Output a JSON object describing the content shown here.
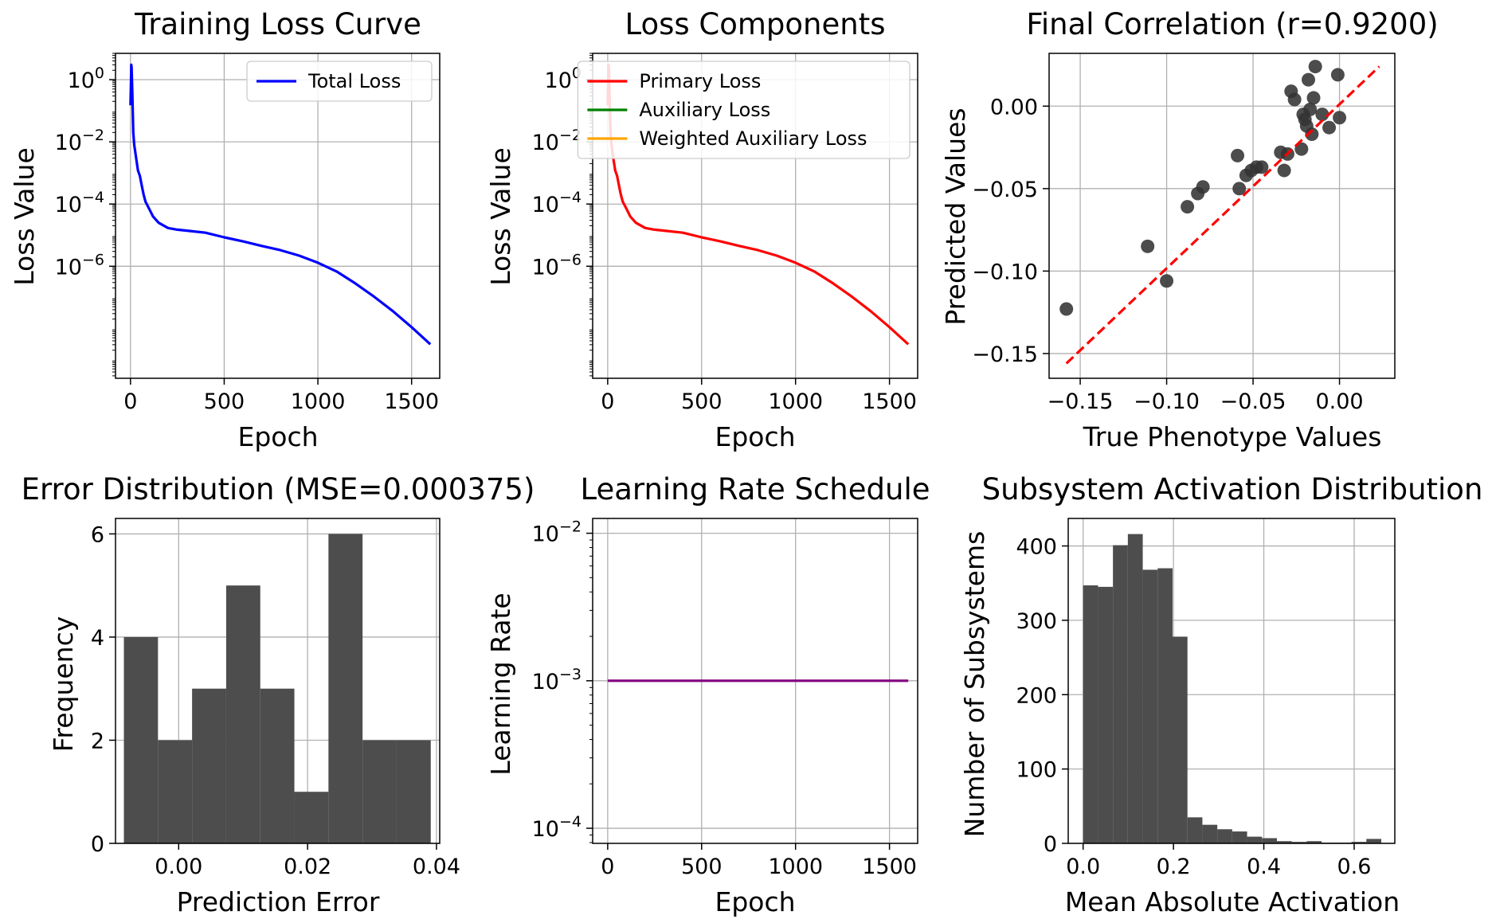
{
  "colors": {
    "total_loss": "#0000ff",
    "primary_loss": "#ff0000",
    "auxiliary_loss": "#008000",
    "weighted_auxiliary_loss": "#ffa500",
    "learning_rate": "#800080",
    "scatter_points": "#333333",
    "fit_line": "#ff0000",
    "histogram_bars": "#4d4d4d"
  },
  "chart_data": [
    {
      "id": "training_loss",
      "type": "line",
      "title": "Training Loss Curve",
      "xlabel": "Epoch",
      "ylabel": "Loss Value",
      "yscale": "log",
      "xlim": [
        -80,
        1650
      ],
      "ylim": [
        2.5e-10,
        7
      ],
      "xticks": [
        0,
        500,
        1000,
        1500
      ],
      "yticks": [
        {
          "base": "10",
          "exp": "0",
          "value": 1
        },
        {
          "base": "10",
          "exp": "−2",
          "value": 0.01
        },
        {
          "base": "10",
          "exp": "−4",
          "value": 0.0001
        },
        {
          "base": "10",
          "exp": "−6",
          "value": 1e-06
        }
      ],
      "grid": true,
      "legend": {
        "position": "top-right",
        "entries": [
          {
            "label": "Total Loss",
            "color_key": "total_loss"
          }
        ]
      },
      "series": [
        {
          "name": "Total Loss",
          "color_key": "total_loss",
          "x": [
            0,
            2,
            4,
            6,
            10,
            15,
            20,
            30,
            40,
            50,
            60,
            70,
            80,
            100,
            120,
            150,
            200,
            250,
            300,
            400,
            500,
            600,
            700,
            800,
            900,
            1000,
            1100,
            1200,
            1300,
            1400,
            1500,
            1600
          ],
          "y": [
            0.15,
            0.6,
            3.0,
            2.5,
            0.3,
            0.02,
            0.008,
            0.003,
            0.0012,
            0.0008,
            0.0004,
            0.0002,
            0.00012,
            7e-05,
            4e-05,
            2.5e-05,
            1.7e-05,
            1.5e-05,
            1.4e-05,
            1.2e-05,
            8.5e-06,
            6.3e-06,
            4.5e-06,
            3.3e-06,
            2.2e-06,
            1.3e-06,
            6.8e-07,
            2.8e-07,
            1.05e-07,
            3.6e-08,
            1.1e-08,
            3.1e-09
          ]
        }
      ]
    },
    {
      "id": "loss_components",
      "type": "line",
      "title": "Loss Components",
      "xlabel": "Epoch",
      "ylabel": "Loss Value",
      "yscale": "log",
      "xlim": [
        -80,
        1650
      ],
      "ylim": [
        2.5e-10,
        7
      ],
      "xticks": [
        0,
        500,
        1000,
        1500
      ],
      "yticks": [
        {
          "base": "10",
          "exp": "0",
          "value": 1
        },
        {
          "base": "10",
          "exp": "−2",
          "value": 0.01
        },
        {
          "base": "10",
          "exp": "−4",
          "value": 0.0001
        },
        {
          "base": "10",
          "exp": "−6",
          "value": 1e-06
        }
      ],
      "grid": true,
      "legend": {
        "position": "top-right",
        "entries": [
          {
            "label": "Primary Loss",
            "color_key": "primary_loss"
          },
          {
            "label": "Auxiliary Loss",
            "color_key": "auxiliary_loss"
          },
          {
            "label": "Weighted Auxiliary Loss",
            "color_key": "weighted_auxiliary_loss"
          }
        ]
      },
      "series": [
        {
          "name": "Primary Loss",
          "color_key": "primary_loss",
          "x": [
            0,
            2,
            4,
            6,
            10,
            15,
            20,
            30,
            40,
            50,
            60,
            70,
            80,
            100,
            120,
            150,
            200,
            250,
            300,
            400,
            500,
            600,
            700,
            800,
            900,
            1000,
            1100,
            1200,
            1300,
            1400,
            1500,
            1600
          ],
          "y": [
            0.15,
            0.6,
            3.0,
            2.5,
            0.3,
            0.02,
            0.008,
            0.003,
            0.0012,
            0.0008,
            0.0004,
            0.0002,
            0.00012,
            7e-05,
            4e-05,
            2.5e-05,
            1.7e-05,
            1.5e-05,
            1.4e-05,
            1.2e-05,
            8.5e-06,
            6.3e-06,
            4.5e-06,
            3.3e-06,
            2.2e-06,
            1.3e-06,
            6.8e-07,
            2.8e-07,
            1.05e-07,
            3.6e-08,
            1.1e-08,
            3.1e-09
          ]
        }
      ]
    },
    {
      "id": "final_correlation",
      "type": "scatter",
      "title": "Final Correlation (r=0.9200)",
      "xlabel": "True Phenotype Values",
      "ylabel": "Predicted Values",
      "xlim": [
        -0.168,
        0.032
      ],
      "ylim": [
        -0.165,
        0.032
      ],
      "xticks": [
        -0.15,
        -0.1,
        -0.05,
        0.0
      ],
      "xtick_labels": [
        "−0.15",
        "−0.10",
        "−0.05",
        "0.00"
      ],
      "yticks": [
        -0.15,
        -0.1,
        -0.05,
        0.0
      ],
      "ytick_labels": [
        "−0.15",
        "−0.10",
        "−0.05",
        "0.00"
      ],
      "grid": true,
      "points": [
        [
          -0.158,
          -0.123
        ],
        [
          -0.111,
          -0.085
        ],
        [
          -0.1,
          -0.106
        ],
        [
          -0.088,
          -0.061
        ],
        [
          -0.082,
          -0.053
        ],
        [
          -0.079,
          -0.049
        ],
        [
          -0.059,
          -0.03
        ],
        [
          -0.058,
          -0.05
        ],
        [
          -0.054,
          -0.042
        ],
        [
          -0.051,
          -0.039
        ],
        [
          -0.048,
          -0.037
        ],
        [
          -0.045,
          -0.037
        ],
        [
          -0.034,
          -0.028
        ],
        [
          -0.032,
          -0.039
        ],
        [
          -0.03,
          -0.029
        ],
        [
          -0.028,
          0.009
        ],
        [
          -0.026,
          0.004
        ],
        [
          -0.022,
          -0.026
        ],
        [
          -0.021,
          -0.005
        ],
        [
          -0.02,
          -0.008
        ],
        [
          -0.019,
          -0.012
        ],
        [
          -0.018,
          0.016
        ],
        [
          -0.017,
          -0.002
        ],
        [
          -0.016,
          -0.017
        ],
        [
          -0.015,
          0.005
        ],
        [
          -0.014,
          0.024
        ],
        [
          -0.01,
          -0.005
        ],
        [
          -0.006,
          -0.013
        ],
        [
          -0.001,
          0.019
        ],
        [
          0.0,
          -0.007
        ]
      ],
      "fit_line": {
        "x": [
          -0.158,
          0.023
        ],
        "y": [
          -0.156,
          0.024
        ]
      }
    },
    {
      "id": "error_distribution",
      "type": "bar",
      "title": "Error Distribution (MSE=0.000375)",
      "xlabel": "Prediction Error",
      "ylabel": "Frequency",
      "xlim": [
        -0.0098,
        0.0405
      ],
      "ylim": [
        0,
        6.3
      ],
      "xticks": [
        0.0,
        0.02,
        0.04
      ],
      "xtick_labels": [
        "0.00",
        "0.02",
        "0.04"
      ],
      "yticks": [
        0,
        2,
        4,
        6
      ],
      "grid": true,
      "bin_edges": [
        -0.0085,
        -0.00321,
        0.00208,
        0.00737,
        0.01266,
        0.01795,
        0.02324,
        0.02853,
        0.03382,
        0.03911
      ],
      "counts": [
        4,
        2,
        3,
        5,
        3,
        1,
        6,
        2,
        2
      ]
    },
    {
      "id": "learning_rate",
      "type": "line",
      "title": "Learning Rate Schedule",
      "xlabel": "Epoch",
      "ylabel": "Learning Rate",
      "yscale": "log",
      "xlim": [
        -80,
        1650
      ],
      "ylim": [
        7.9e-05,
        0.0126
      ],
      "xticks": [
        0,
        500,
        1000,
        1500
      ],
      "yticks": [
        {
          "base": "10",
          "exp": "−2",
          "value": 0.01
        },
        {
          "base": "10",
          "exp": "−3",
          "value": 0.001
        },
        {
          "base": "10",
          "exp": "−4",
          "value": 0.0001
        }
      ],
      "grid": true,
      "series": [
        {
          "name": "",
          "color_key": "learning_rate",
          "x": [
            0,
            1600
          ],
          "y": [
            0.001,
            0.001
          ]
        }
      ]
    },
    {
      "id": "subsystem_activation",
      "type": "bar",
      "title": "Subsystem Activation Distribution",
      "xlabel": "Mean Absolute Activation",
      "ylabel": "Number of Subsystems",
      "xlim": [
        -0.033,
        0.69
      ],
      "ylim": [
        0,
        437
      ],
      "xticks": [
        0.0,
        0.2,
        0.4,
        0.6
      ],
      "xtick_labels": [
        "0.0",
        "0.2",
        "0.4",
        "0.6"
      ],
      "yticks": [
        0,
        100,
        200,
        300,
        400
      ],
      "grid": true,
      "bin_edges": [
        0.0,
        0.033,
        0.066,
        0.099,
        0.132,
        0.165,
        0.198,
        0.231,
        0.264,
        0.297,
        0.33,
        0.363,
        0.396,
        0.429,
        0.462,
        0.495,
        0.528,
        0.561,
        0.594,
        0.627,
        0.66
      ],
      "counts": [
        347,
        345,
        401,
        416,
        368,
        370,
        278,
        35,
        25,
        19,
        16,
        9,
        7,
        3,
        2,
        3,
        1,
        1,
        2,
        6
      ]
    }
  ]
}
